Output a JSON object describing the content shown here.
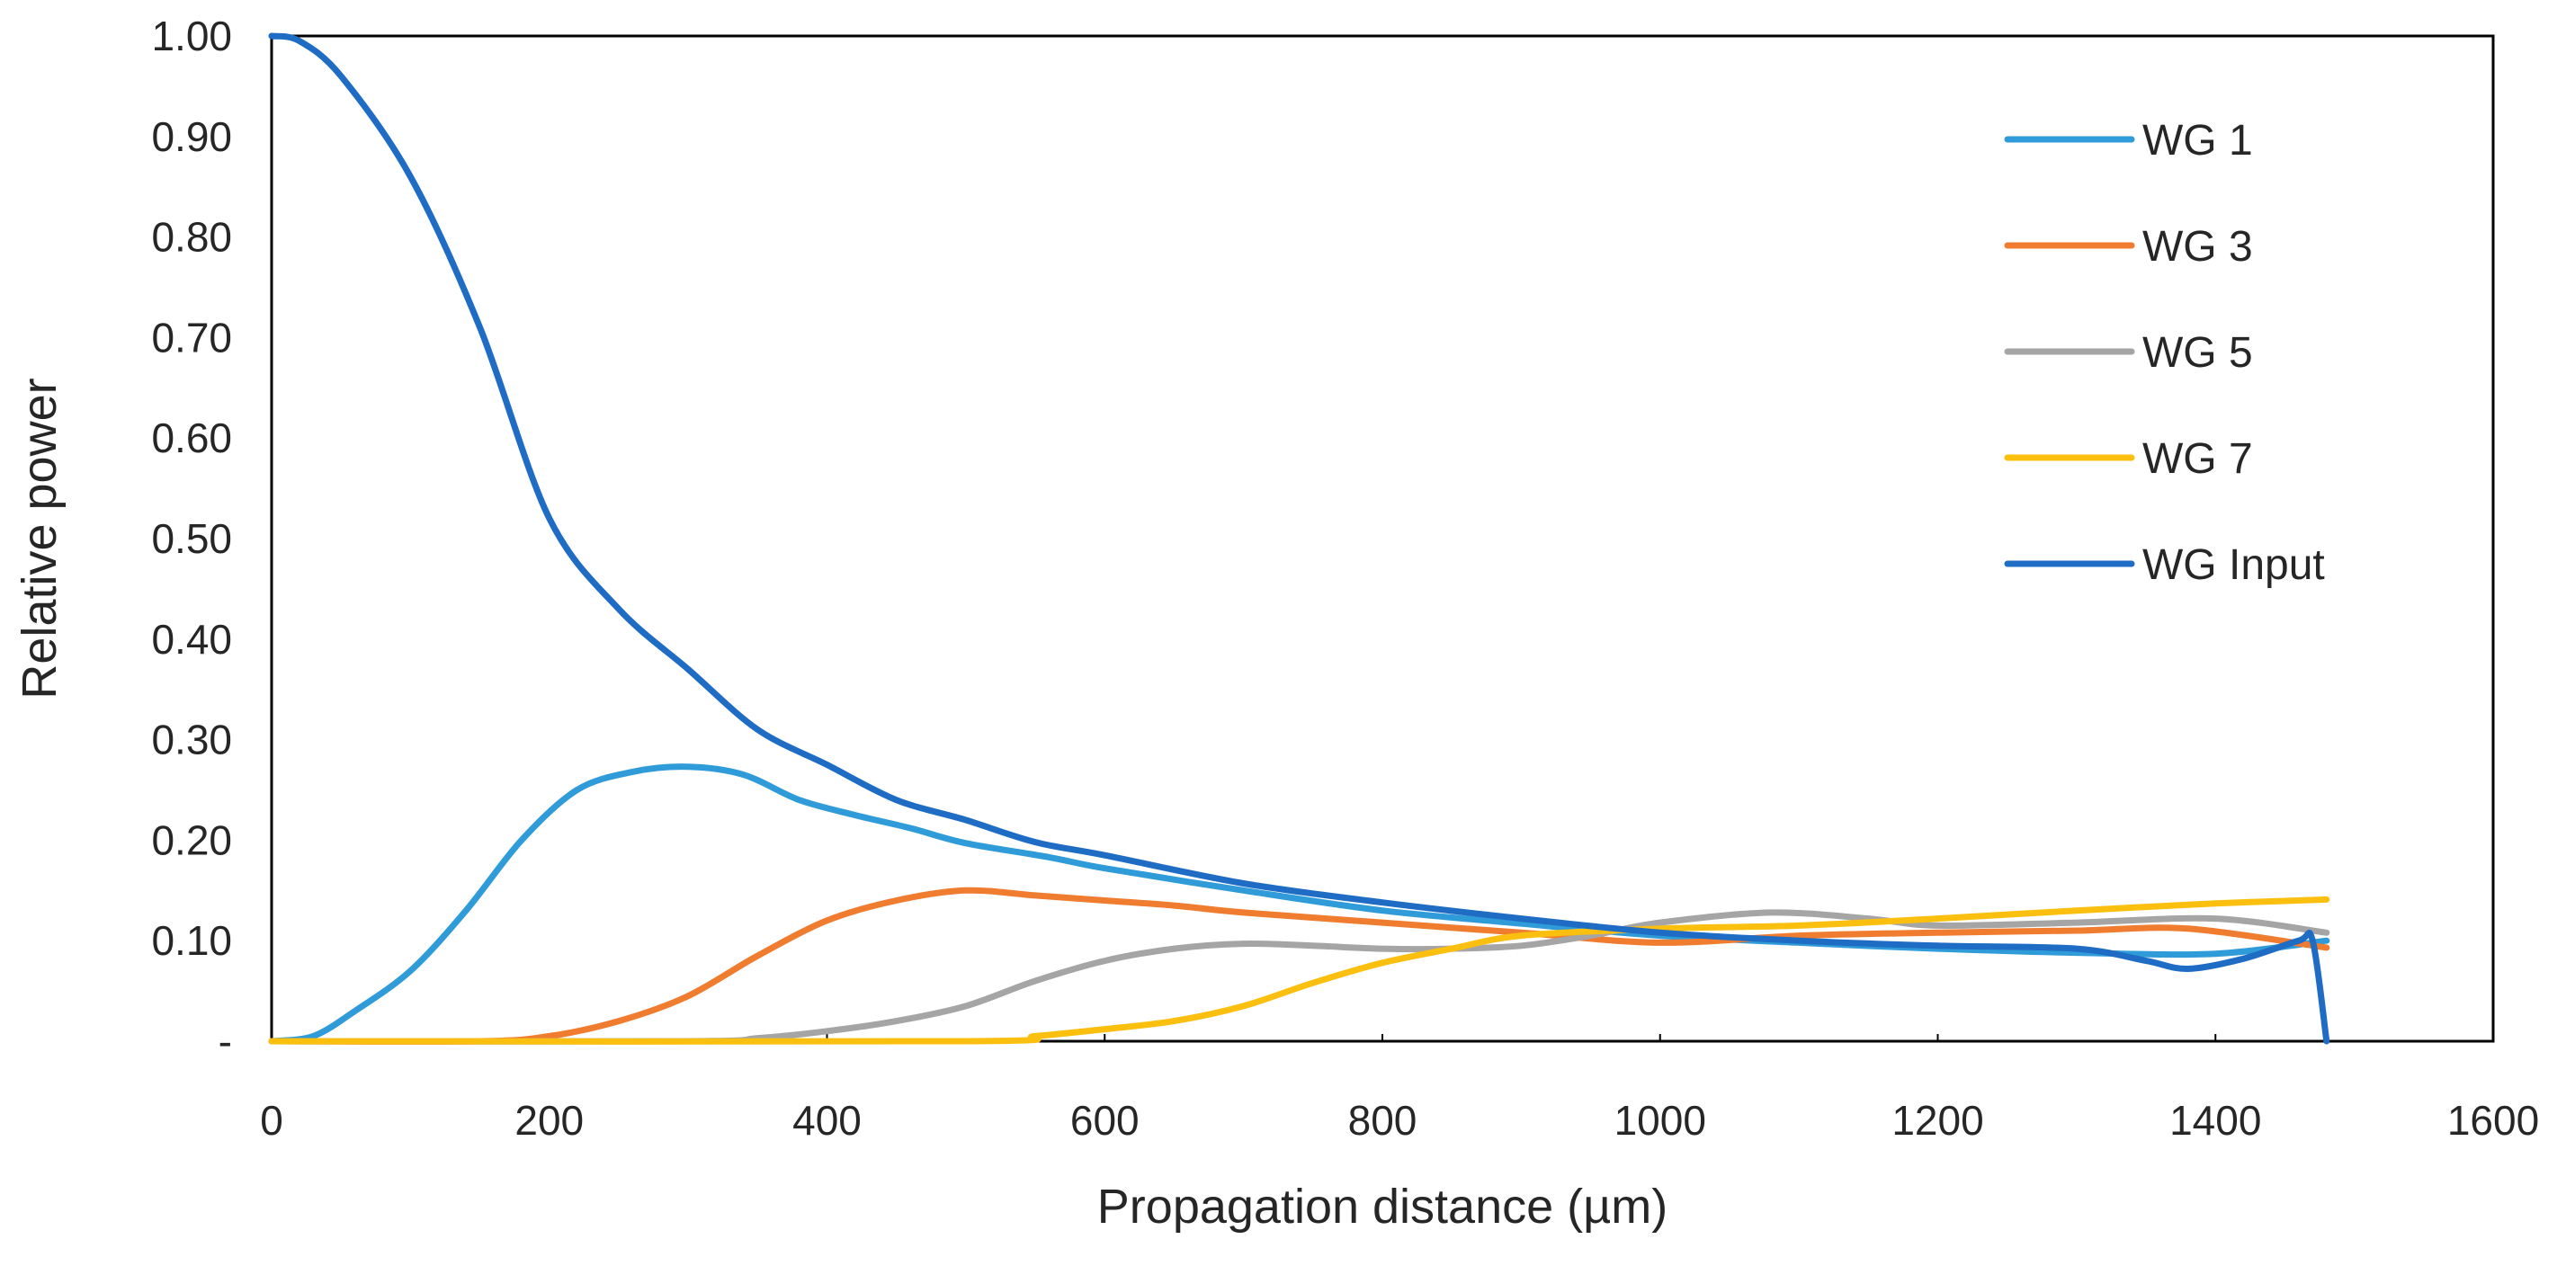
{
  "chart_data": {
    "type": "line",
    "title": "",
    "xlabel": "Propagation distance (µm)",
    "ylabel": "Relative power",
    "xlim": [
      0,
      1600
    ],
    "ylim": [
      0,
      1.0
    ],
    "x_ticks": [
      0,
      200,
      400,
      600,
      800,
      1000,
      1200,
      1400,
      1600
    ],
    "x_tick_labels": [
      "0",
      "200",
      "400",
      "600",
      "800",
      "1000",
      "1200",
      "1400",
      "1600"
    ],
    "y_ticks": [
      0,
      0.1,
      0.2,
      0.3,
      0.4,
      0.5,
      0.6,
      0.7,
      0.8,
      0.9,
      1.0
    ],
    "y_tick_labels": [
      "-",
      "0.10",
      "0.20",
      "0.30",
      "0.40",
      "0.50",
      "0.60",
      "0.70",
      "0.80",
      "0.90",
      "1.00"
    ],
    "grid": false,
    "legend_position": "top-right",
    "series": [
      {
        "name": "WG 1",
        "color": "#2f9bd8",
        "x": [
          0,
          30,
          60,
          100,
          140,
          180,
          220,
          260,
          300,
          340,
          380,
          420,
          460,
          500,
          560,
          600,
          700,
          800,
          900,
          1000,
          1100,
          1200,
          1300,
          1400,
          1480
        ],
        "y": [
          0.0,
          0.005,
          0.03,
          0.07,
          0.13,
          0.2,
          0.25,
          0.268,
          0.273,
          0.265,
          0.24,
          0.225,
          0.212,
          0.197,
          0.183,
          0.172,
          0.15,
          0.13,
          0.117,
          0.105,
          0.098,
          0.092,
          0.088,
          0.087,
          0.1
        ]
      },
      {
        "name": "WG 3",
        "color": "#f07c30",
        "x": [
          0,
          150,
          200,
          250,
          300,
          350,
          400,
          450,
          500,
          550,
          600,
          650,
          700,
          800,
          900,
          1000,
          1100,
          1200,
          1300,
          1380,
          1480
        ],
        "y": [
          0.0,
          0.0,
          0.005,
          0.02,
          0.045,
          0.085,
          0.12,
          0.14,
          0.15,
          0.145,
          0.14,
          0.135,
          0.128,
          0.118,
          0.108,
          0.098,
          0.105,
          0.108,
          0.11,
          0.112,
          0.093
        ]
      },
      {
        "name": "WG 5",
        "color": "#a5a5a5",
        "x": [
          0,
          300,
          350,
          400,
          450,
          500,
          550,
          600,
          650,
          700,
          750,
          800,
          850,
          900,
          950,
          1000,
          1080,
          1150,
          1200,
          1300,
          1400,
          1480
        ],
        "y": [
          0.0,
          0.0,
          0.003,
          0.01,
          0.02,
          0.035,
          0.06,
          0.08,
          0.092,
          0.097,
          0.095,
          0.092,
          0.092,
          0.095,
          0.105,
          0.118,
          0.128,
          0.122,
          0.115,
          0.118,
          0.122,
          0.108
        ]
      },
      {
        "name": "WG 7",
        "color": "#fbbf10",
        "x": [
          0,
          500,
          550,
          600,
          650,
          700,
          750,
          800,
          850,
          900,
          1000,
          1100,
          1200,
          1300,
          1400,
          1480
        ],
        "y": [
          0.0,
          0.0,
          0.005,
          0.012,
          0.02,
          0.035,
          0.058,
          0.078,
          0.092,
          0.105,
          0.112,
          0.115,
          0.122,
          0.13,
          0.137,
          0.141
        ]
      },
      {
        "name": "WG Input",
        "color": "#1f6cc4",
        "x": [
          0,
          20,
          50,
          100,
          150,
          200,
          250,
          300,
          350,
          400,
          450,
          500,
          550,
          600,
          700,
          800,
          900,
          1000,
          1100,
          1200,
          1300,
          1350,
          1380,
          1420,
          1460,
          1470,
          1480
        ],
        "y": [
          1.0,
          0.995,
          0.96,
          0.86,
          0.71,
          0.52,
          0.43,
          0.37,
          0.31,
          0.275,
          0.24,
          0.22,
          0.198,
          0.185,
          0.157,
          0.138,
          0.122,
          0.108,
          0.1,
          0.095,
          0.092,
          0.08,
          0.072,
          0.082,
          0.1,
          0.1,
          0.0
        ]
      }
    ]
  }
}
